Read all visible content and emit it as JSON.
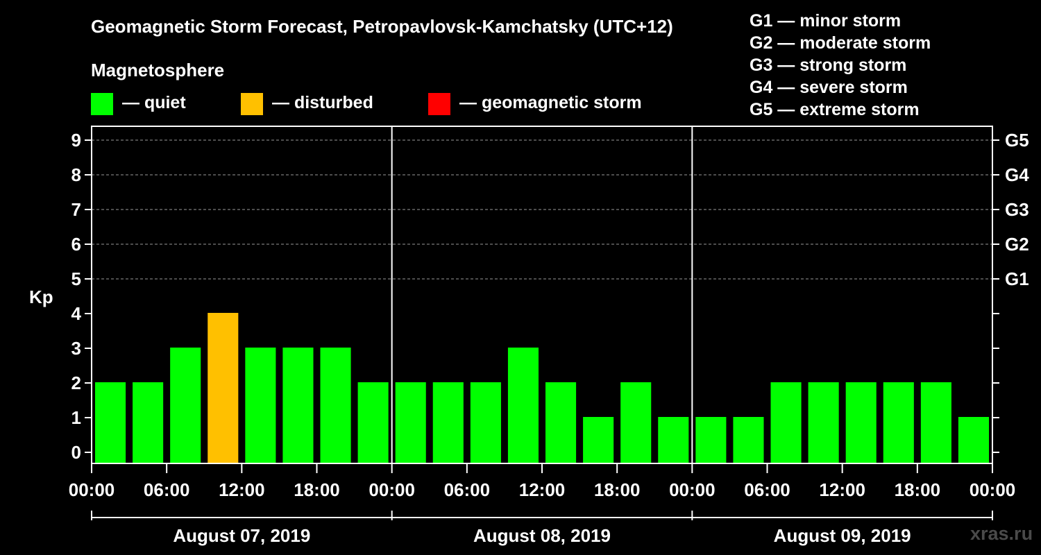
{
  "chart_data": {
    "type": "bar",
    "title": "Geomagnetic Storm Forecast, Petropavlovsk-Kamchatsky (UTC+12)",
    "ylabel": "Kp",
    "ylim": [
      0,
      9
    ],
    "yticks": [
      "0",
      "1",
      "2",
      "3",
      "4",
      "5",
      "6",
      "7",
      "8",
      "9"
    ],
    "storm_levels": [
      "G1",
      "G2",
      "G3",
      "G4",
      "G5"
    ],
    "storm_level_kp": [
      5,
      6,
      7,
      8,
      9
    ],
    "x_tick_labels": [
      "00:00",
      "06:00",
      "12:00",
      "18:00",
      "00:00",
      "06:00",
      "12:00",
      "18:00",
      "00:00",
      "06:00",
      "12:00",
      "18:00",
      "00:00"
    ],
    "days": [
      "August 07, 2019",
      "August 08, 2019",
      "August 09, 2019"
    ],
    "interval_hours": 3,
    "series": [
      {
        "name": "Kp",
        "values": [
          2,
          2,
          3,
          4,
          3,
          3,
          3,
          2,
          2,
          2,
          2,
          3,
          2,
          1,
          2,
          1,
          1,
          1,
          2,
          2,
          2,
          2,
          2,
          1
        ],
        "status": [
          "quiet",
          "quiet",
          "quiet",
          "disturbed",
          "quiet",
          "quiet",
          "quiet",
          "quiet",
          "quiet",
          "quiet",
          "quiet",
          "quiet",
          "quiet",
          "quiet",
          "quiet",
          "quiet",
          "quiet",
          "quiet",
          "quiet",
          "quiet",
          "quiet",
          "quiet",
          "quiet",
          "quiet"
        ]
      }
    ],
    "grid": true
  },
  "legend": {
    "title": "Magnetosphere",
    "items": [
      {
        "label": "— quiet",
        "color": "#00ff00",
        "status": "quiet"
      },
      {
        "label": "— disturbed",
        "color": "#ffc000",
        "status": "disturbed"
      },
      {
        "label": "— geomagnetic storm",
        "color": "#ff0000",
        "status": "storm"
      }
    ]
  },
  "storm_legend": [
    "G1 — minor storm",
    "G2 — moderate storm",
    "G3 — strong storm",
    "G4 — severe storm",
    "G5 — extreme storm"
  ],
  "watermark": "xras.ru"
}
